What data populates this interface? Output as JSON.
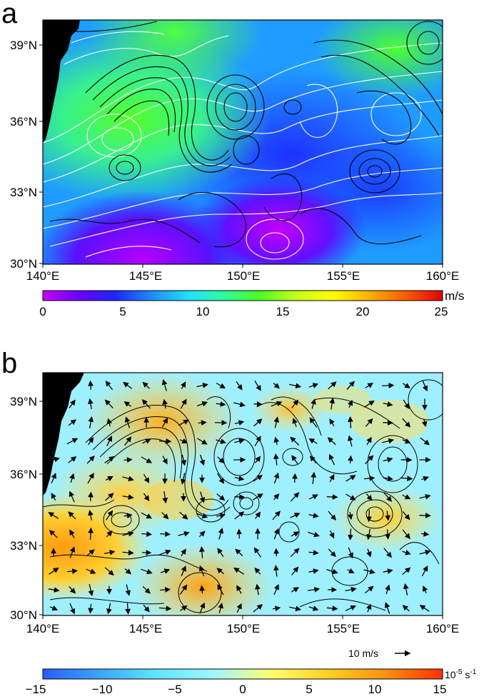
{
  "panels": [
    {
      "letter": "a",
      "lat_ticks": [
        "39°N",
        "36°N",
        "33°N",
        "30°N"
      ],
      "lon_ticks": [
        "140°E",
        "145°E",
        "150°E",
        "155°E",
        "160°E"
      ],
      "colorbar": {
        "unit": "m/s",
        "ticks": [
          "0",
          "5",
          "10",
          "15",
          "20",
          "25"
        ],
        "colors": [
          "#c800ff",
          "#6a00ff",
          "#1a28ff",
          "#1f8cff",
          "#1fe0ff",
          "#2cff9a",
          "#4cff1e",
          "#c8ff1a",
          "#ffff00",
          "#ffb000",
          "#ff5a00",
          "#e00000"
        ]
      }
    },
    {
      "letter": "b",
      "lat_ticks": [
        "39°N",
        "36°N",
        "33°N",
        "30°N"
      ],
      "lon_ticks": [
        "140°E",
        "145°E",
        "150°E",
        "155°E",
        "160°E"
      ],
      "scale_label": "10 m/s",
      "colorbar": {
        "unit_base": "10",
        "unit_exp": "-5",
        "unit_mid": " s",
        "unit_exp2": "-1",
        "ticks": [
          "−15",
          "−10",
          "−5",
          "0",
          "5",
          "10",
          "15"
        ],
        "colors": [
          "#2a5cff",
          "#3aa6ff",
          "#5fe6ff",
          "#9ff6ff",
          "#ffff70",
          "#ffd020",
          "#ff9010",
          "#ff3000"
        ]
      }
    }
  ]
}
